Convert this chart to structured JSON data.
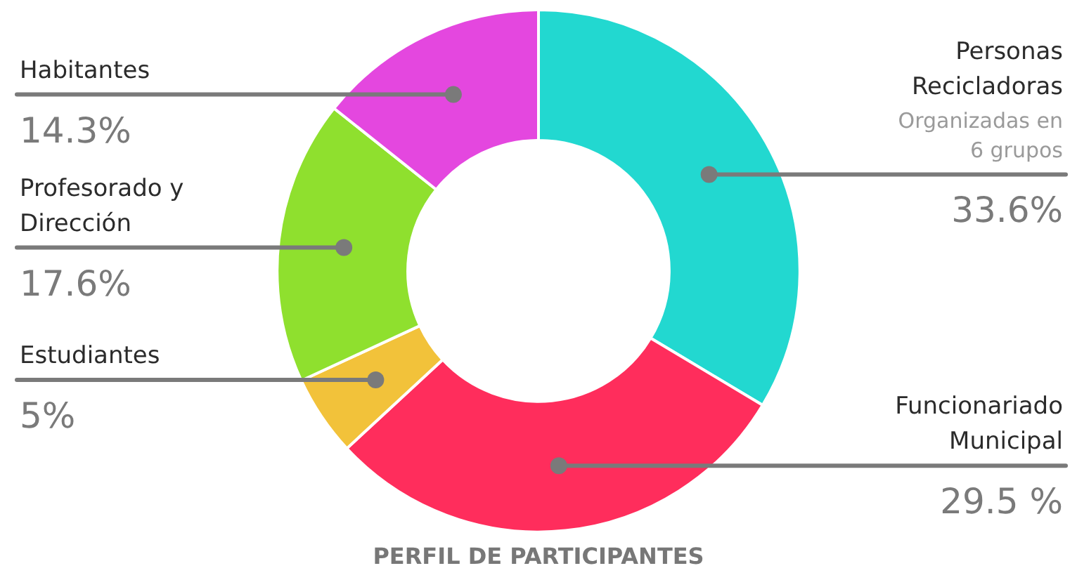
{
  "chart_data": {
    "type": "donut",
    "title": "PERFIL DE PARTICIPANTES",
    "categories": [
      "Personas Recicladoras",
      "Funcionariado Municipal",
      "Estudiantes",
      "Profesorado y Dirección",
      "Habitantes"
    ],
    "values": [
      33.6,
      29.5,
      5,
      17.6,
      14.3
    ],
    "colors": [
      "#22d8d0",
      "#ff2d5c",
      "#f2c23a",
      "#8fe02e",
      "#e447df"
    ],
    "value_labels": [
      "33.6%",
      "29.5 %",
      "5%",
      "17.6%",
      "14.3%"
    ],
    "annotations": [
      "Organizadas en 6 grupos"
    ],
    "legend": false
  }
}
